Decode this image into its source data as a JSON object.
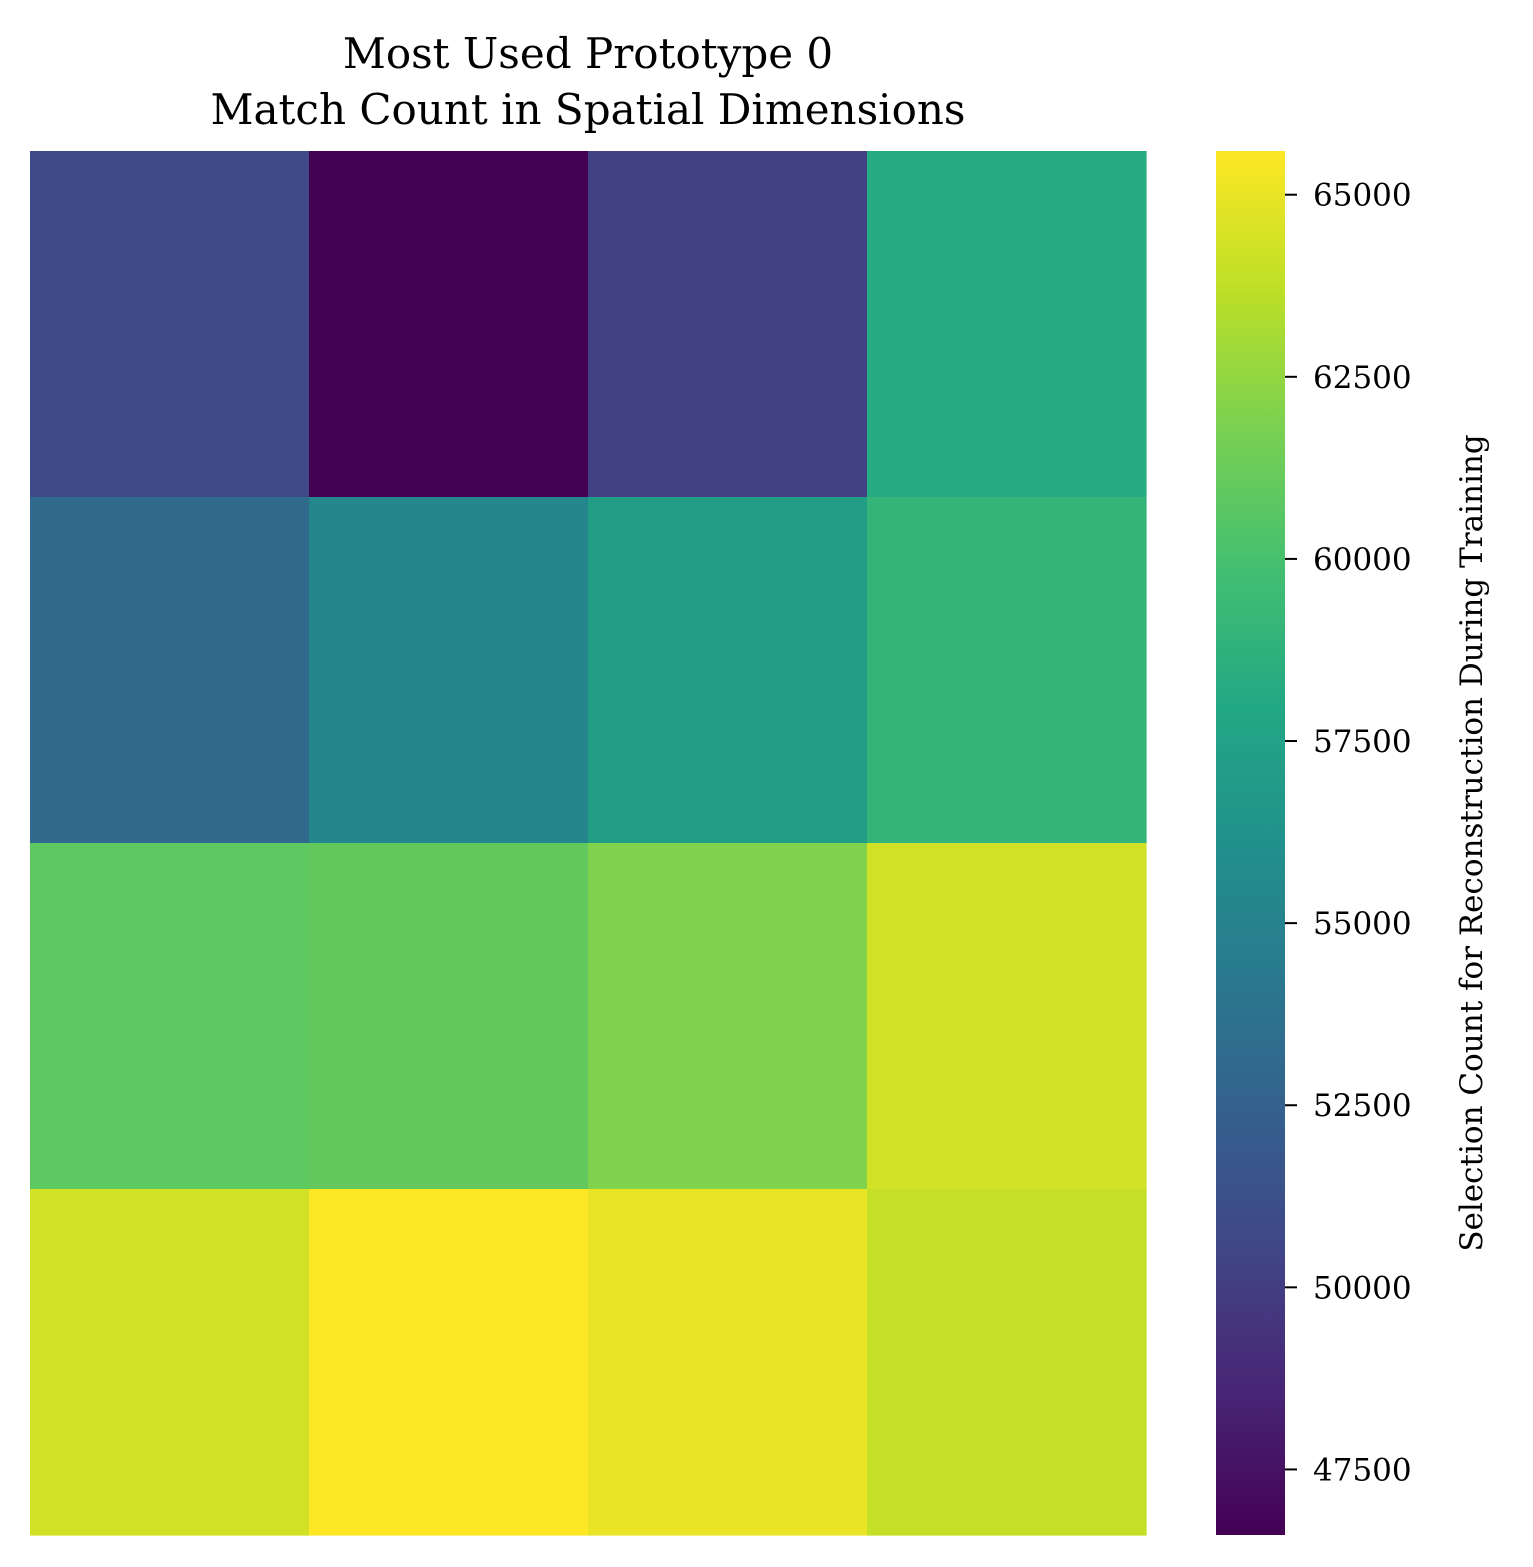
{
  "chart_data": {
    "type": "heatmap",
    "title": [
      "Most Used Prototype  0",
      "Match Count in Spatial Dimensions"
    ],
    "colormap": "viridis",
    "rows": 4,
    "cols": 4,
    "values": [
      [
        50800,
        46600,
        50200,
        58300
      ],
      [
        53200,
        55300,
        57200,
        59000
      ],
      [
        60800,
        61000,
        62000,
        64300
      ],
      [
        64300,
        65600,
        65000,
        63900
      ]
    ],
    "colorbar": {
      "label": "Selection Count for Reconstruction During Training",
      "vmin": 46600,
      "vmax": 65600,
      "ticks": [
        47500,
        50000,
        52500,
        55000,
        57500,
        60000,
        62500,
        65000
      ],
      "tick_labels": [
        "47500",
        "50000",
        "52500",
        "55000",
        "57500",
        "60000",
        "62500",
        "65000"
      ]
    },
    "xticks": [],
    "yticks": [],
    "grid": false
  }
}
